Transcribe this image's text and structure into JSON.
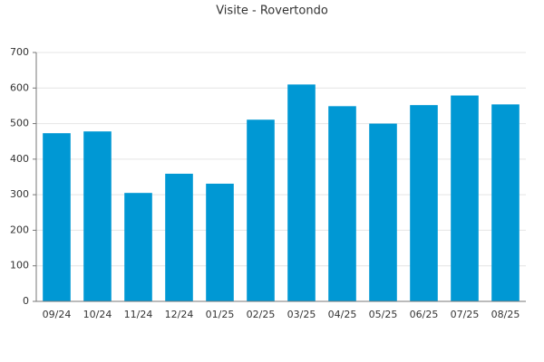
{
  "chart_data": {
    "type": "bar",
    "title": "Visite - Rovertondo",
    "categories": [
      "09/24",
      "10/24",
      "11/24",
      "12/24",
      "01/25",
      "02/25",
      "03/25",
      "04/25",
      "05/25",
      "06/25",
      "07/25",
      "08/25"
    ],
    "values": [
      473,
      478,
      305,
      359,
      331,
      511,
      610,
      549,
      500,
      552,
      579,
      554
    ],
    "color": "#0098d4",
    "ylim": [
      0,
      700
    ],
    "yticks": [
      0,
      100,
      200,
      300,
      400,
      500,
      600,
      700
    ],
    "grid": true
  }
}
